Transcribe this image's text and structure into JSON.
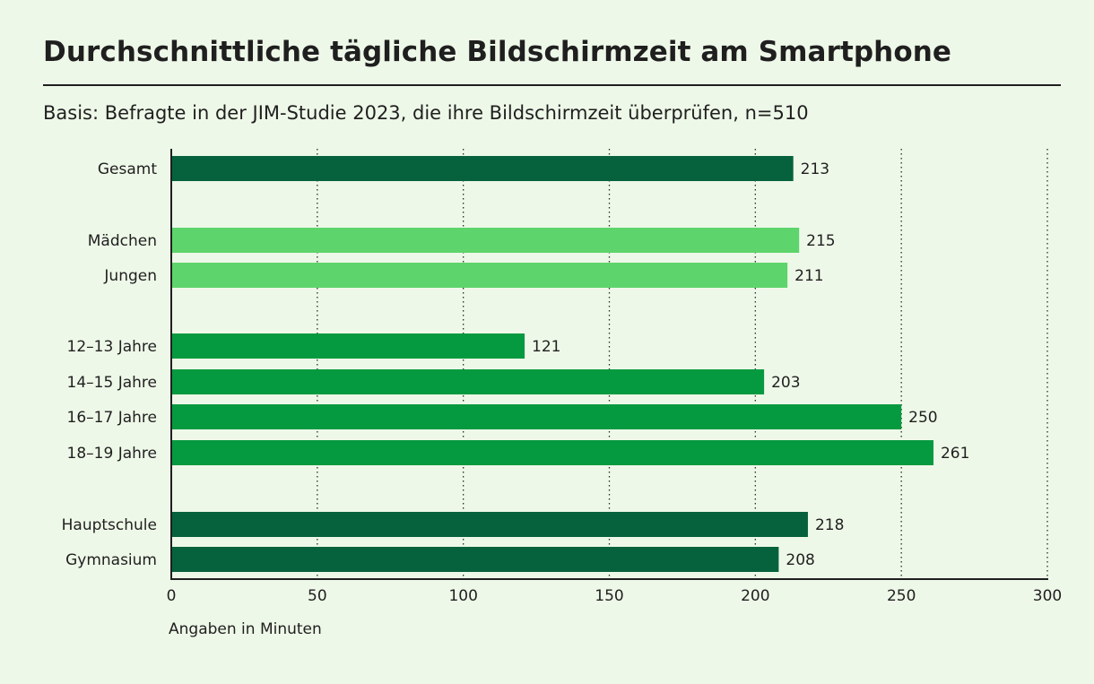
{
  "header": {
    "title": "Durchschnittliche tägliche Bildschirmzeit am Smartphone",
    "subtitle": "Basis: Befragte in der JIM-Studie 2023, die ihre Bildschirmzeit überprüfen, n=510"
  },
  "colors": {
    "dark_green": "#05623c",
    "light_green": "#5ed46c",
    "mid_green": "#069a40",
    "background": "#eef8e8"
  },
  "chart_data": {
    "type": "bar",
    "orientation": "horizontal",
    "title": "Durchschnittliche tägliche Bildschirmzeit am Smartphone",
    "subtitle": "Basis: Befragte in der JIM-Studie 2023, die ihre Bildschirmzeit überprüfen, n=510",
    "xlabel": "Angaben in Minuten",
    "ylabel": "",
    "xlim": [
      0,
      300
    ],
    "xticks": [
      0,
      50,
      100,
      150,
      200,
      250,
      300
    ],
    "grid": "vertical-dotted",
    "categories": [
      "Gesamt",
      "Mädchen",
      "Jungen",
      "12–13 Jahre",
      "14–15 Jahre",
      "16–17 Jahre",
      "18–19 Jahre",
      "Hauptschule",
      "Gymnasium"
    ],
    "values": [
      213,
      215,
      211,
      121,
      203,
      250,
      261,
      218,
      208
    ],
    "groups": [
      "gesamt",
      "geschlecht",
      "geschlecht",
      "alter",
      "alter",
      "alter",
      "alter",
      "schule",
      "schule"
    ],
    "group_colors": {
      "gesamt": "#05623c",
      "geschlecht": "#5ed46c",
      "alter": "#069a40",
      "schule": "#05623c"
    }
  }
}
